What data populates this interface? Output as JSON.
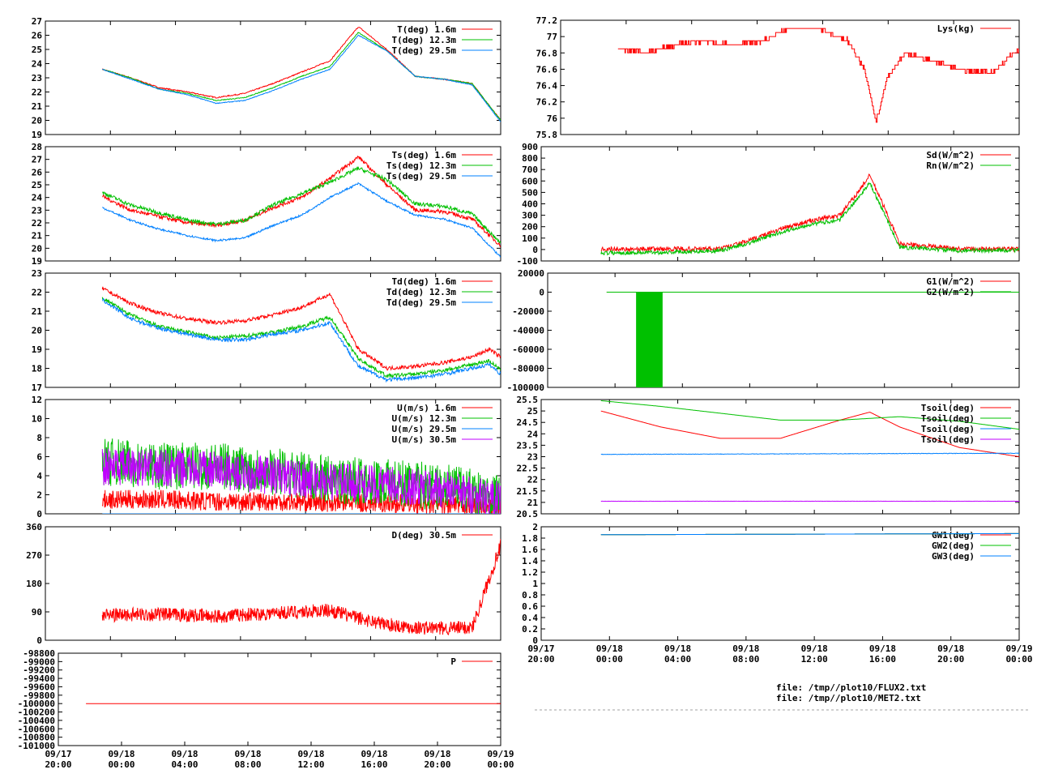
{
  "footer": {
    "file1": "file: /tmp//plot10/FLUX2.txt",
    "file2": "file: /tmp//plot10/MET2.txt"
  },
  "colors": {
    "red": "#ff0000",
    "green": "#00c000",
    "blue": "#0080ff",
    "purple": "#c000ff",
    "brown": "#a05a00"
  },
  "chart_data": [
    {
      "id": "T",
      "type": "line",
      "ylim": [
        19,
        27
      ],
      "yticks": [
        "19",
        "20",
        "21",
        "22",
        "23",
        "24",
        "25",
        "26",
        "27"
      ],
      "xlim": [
        -4,
        4
      ],
      "xticks": [],
      "series": [
        {
          "name": "T(deg)  1.6m",
          "color": "#ff0000",
          "noise": 0.08,
          "x": [
            -3,
            -2.5,
            -2,
            -1.5,
            -1,
            -0.5,
            0,
            0.5,
            1,
            1.5,
            2,
            2.5,
            3,
            3.5,
            4
          ],
          "y": [
            23.6,
            23.0,
            22.3,
            22.0,
            21.6,
            21.9,
            22.6,
            23.4,
            24.2,
            26.6,
            25.0,
            23.1,
            22.9,
            22.6,
            20.0
          ]
        },
        {
          "name": "T(deg) 12.3m",
          "color": "#00c000",
          "noise": 0.06,
          "x": [
            -3,
            -2.5,
            -2,
            -1.5,
            -1,
            -0.5,
            0,
            0.5,
            1,
            1.5,
            2,
            2.5,
            3,
            3.5,
            4
          ],
          "y": [
            23.6,
            23.0,
            22.2,
            21.9,
            21.4,
            21.6,
            22.3,
            23.1,
            23.8,
            26.2,
            24.9,
            23.1,
            22.9,
            22.6,
            20.0
          ]
        },
        {
          "name": "T(deg) 29.5m",
          "color": "#0080ff",
          "noise": 0.05,
          "x": [
            -3,
            -2.5,
            -2,
            -1.5,
            -1,
            -0.5,
            0,
            0.5,
            1,
            1.5,
            2,
            2.5,
            3,
            3.5,
            4
          ],
          "y": [
            23.6,
            22.9,
            22.2,
            21.8,
            21.2,
            21.4,
            22.1,
            22.9,
            23.6,
            26.0,
            24.9,
            23.1,
            22.9,
            22.5,
            19.9
          ]
        }
      ]
    },
    {
      "id": "Ts",
      "type": "line",
      "ylim": [
        19,
        28
      ],
      "yticks": [
        "19",
        "20",
        "21",
        "22",
        "23",
        "24",
        "25",
        "26",
        "27",
        "28"
      ],
      "xlim": [
        -4,
        4
      ],
      "xticks": [],
      "series": [
        {
          "name": "Ts(deg)  1.6m",
          "color": "#ff0000",
          "noise": 0.3,
          "x": [
            -3,
            -2.5,
            -2,
            -1.5,
            -1,
            -0.5,
            0,
            0.5,
            1,
            1.5,
            2,
            2.5,
            3,
            3.5,
            4
          ],
          "y": [
            24.1,
            23.0,
            22.5,
            22.0,
            21.8,
            22.2,
            23.2,
            24.0,
            25.5,
            27.2,
            25.0,
            23.0,
            22.9,
            22.3,
            20.2
          ]
        },
        {
          "name": "Ts(deg) 12.3m",
          "color": "#00c000",
          "noise": 0.3,
          "x": [
            -3,
            -2.5,
            -2,
            -1.5,
            -1,
            -0.5,
            0,
            0.5,
            1,
            1.5,
            2,
            2.5,
            3,
            3.5,
            4
          ],
          "y": [
            24.4,
            23.4,
            22.8,
            22.2,
            21.9,
            22.2,
            23.4,
            24.3,
            25.2,
            26.3,
            25.4,
            23.5,
            23.3,
            22.7,
            20.4
          ]
        },
        {
          "name": "Ts(deg) 29.5m",
          "color": "#0080ff",
          "noise": 0.15,
          "x": [
            -3,
            -2.5,
            -2,
            -1.5,
            -1,
            -0.5,
            0,
            0.5,
            1,
            1.5,
            2,
            2.5,
            3,
            3.5,
            4
          ],
          "y": [
            23.2,
            22.2,
            21.5,
            21.0,
            20.6,
            20.8,
            21.8,
            22.6,
            24.0,
            25.1,
            23.7,
            22.6,
            22.3,
            21.6,
            19.3
          ]
        }
      ]
    },
    {
      "id": "Td",
      "type": "line",
      "ylim": [
        17,
        23
      ],
      "yticks": [
        "17",
        "18",
        "19",
        "20",
        "21",
        "22",
        "23"
      ],
      "xlim": [
        -4,
        4
      ],
      "xticks": [],
      "series": [
        {
          "name": "Td(deg)  1.6m",
          "color": "#ff0000",
          "noise": 0.2,
          "x": [
            -3,
            -2.5,
            -2,
            -1.5,
            -1,
            -0.5,
            0,
            0.5,
            1,
            1.5,
            2,
            2.5,
            3,
            3.5,
            3.8,
            4
          ],
          "y": [
            22.2,
            21.4,
            20.9,
            20.6,
            20.4,
            20.5,
            20.8,
            21.2,
            21.9,
            19.0,
            18.0,
            18.1,
            18.3,
            18.6,
            19.0,
            18.6
          ]
        },
        {
          "name": "Td(deg) 12.3m",
          "color": "#00c000",
          "noise": 0.2,
          "x": [
            -3,
            -2.5,
            -2,
            -1.5,
            -1,
            -0.5,
            0,
            0.5,
            1,
            1.5,
            2,
            2.5,
            3,
            3.5,
            3.8,
            4
          ],
          "y": [
            21.7,
            20.8,
            20.2,
            19.9,
            19.6,
            19.7,
            19.9,
            20.2,
            20.7,
            18.5,
            17.6,
            17.7,
            17.9,
            18.2,
            18.4,
            17.9
          ]
        },
        {
          "name": "Td(deg) 29.5m",
          "color": "#0080ff",
          "noise": 0.2,
          "x": [
            -3,
            -2.5,
            -2,
            -1.5,
            -1,
            -0.5,
            0,
            0.5,
            1,
            1.5,
            2,
            2.5,
            3,
            3.5,
            3.8,
            4
          ],
          "y": [
            21.6,
            20.6,
            20.1,
            19.8,
            19.5,
            19.5,
            19.8,
            20.0,
            20.4,
            18.1,
            17.4,
            17.5,
            17.7,
            18.0,
            18.2,
            17.7
          ]
        }
      ]
    },
    {
      "id": "U",
      "type": "line",
      "ylim": [
        0,
        12
      ],
      "yticks": [
        "0",
        "2",
        "4",
        "6",
        "8",
        "10",
        "12"
      ],
      "xlim": [
        -4,
        4
      ],
      "xticks": [],
      "series": [
        {
          "name": "U(m/s)  1.6m",
          "color": "#ff0000",
          "noise": 1.0,
          "mode": "band",
          "x": [
            -3,
            -2,
            -1,
            0,
            1,
            2,
            3,
            4
          ],
          "y": [
            1.5,
            1.5,
            1.3,
            1.3,
            1.2,
            1.1,
            0.9,
            0.6
          ]
        },
        {
          "name": "U(m/s) 12.3m",
          "color": "#00c000",
          "noise": 2.5,
          "mode": "band",
          "x": [
            -3,
            -2,
            -1,
            0,
            1,
            2,
            3,
            4
          ],
          "y": [
            5.5,
            5.0,
            5.0,
            4.5,
            3.6,
            3.3,
            2.8,
            1.6
          ]
        },
        {
          "name": "U(m/s) 29.5m",
          "color": "#0080ff",
          "noise": 0.0,
          "mode": "band",
          "x": [
            -3,
            4
          ],
          "y": [
            0,
            0
          ]
        },
        {
          "name": "U(m/s) 30.5m",
          "color": "#c000ff",
          "noise": 2.0,
          "mode": "band",
          "x": [
            -3,
            -2,
            -1,
            0,
            1,
            2,
            3,
            4
          ],
          "y": [
            5.0,
            4.8,
            4.6,
            4.0,
            3.4,
            3.0,
            2.6,
            1.4
          ]
        }
      ]
    },
    {
      "id": "D",
      "type": "line",
      "ylim": [
        0,
        360
      ],
      "yticks": [
        "0",
        "90",
        "180",
        "270",
        "360"
      ],
      "xlim": [
        -4,
        4
      ],
      "xticks": [],
      "series": [
        {
          "name": "D(deg)  30.5m",
          "color": "#ff0000",
          "noise": 22,
          "mode": "band",
          "x": [
            -3,
            -2,
            -1,
            0,
            1,
            1.5,
            2,
            2.5,
            3,
            3.5,
            4
          ],
          "y": [
            80,
            82,
            76,
            86,
            95,
            70,
            50,
            40,
            38,
            40,
            300
          ]
        }
      ]
    },
    {
      "id": "P",
      "type": "line",
      "ylim": [
        -101000,
        -98800
      ],
      "yticks": [
        "-101000",
        "-100800",
        "-100600",
        "-100400",
        "-100200",
        "-100000",
        "-99800",
        "-99600",
        "-99400",
        "-99200",
        "-99000",
        "-98800"
      ],
      "xlim": [
        -4,
        4
      ],
      "xticks": [
        "09/17\n20:00",
        "09/18\n00:00",
        "09/18\n04:00",
        "09/18\n08:00",
        "09/18\n12:00",
        "09/18\n16:00",
        "09/18\n20:00",
        "09/19\n00:00"
      ],
      "series": [
        {
          "name": "P",
          "color": "#ff0000",
          "noise": 0,
          "x": [
            -3.5,
            4
          ],
          "y": [
            -100000,
            -100000
          ]
        }
      ]
    },
    {
      "id": "Lys",
      "type": "line",
      "ylim": [
        75.8,
        77.2
      ],
      "yticks": [
        "75.8",
        "76",
        "76.2",
        "76.4",
        "76.6",
        "76.8",
        "77",
        "77.2"
      ],
      "xlim": [
        -4,
        4
      ],
      "xticks": [],
      "series": [
        {
          "name": "Lys(kg)",
          "color": "#ff0000",
          "noise": 0.05,
          "mode": "step",
          "x": [
            -3,
            -2.5,
            -2,
            -1.5,
            -1,
            -0.5,
            0,
            0.5,
            1,
            1.3,
            1.5,
            1.7,
            2,
            2.5,
            3,
            3.5,
            4
          ],
          "y": [
            76.85,
            76.8,
            76.9,
            76.95,
            76.9,
            76.95,
            77.1,
            77.1,
            76.95,
            76.6,
            75.95,
            76.5,
            76.8,
            76.7,
            76.6,
            76.55,
            76.85
          ]
        }
      ]
    },
    {
      "id": "Rad",
      "type": "line",
      "ylim": [
        -100,
        900
      ],
      "yticks": [
        "-100",
        "0",
        "100",
        "200",
        "300",
        "400",
        "500",
        "600",
        "700",
        "800",
        "900"
      ],
      "xlim": [
        -4,
        4
      ],
      "xticks": [],
      "series": [
        {
          "name": "Sd(W/m^2)",
          "color": "#ff0000",
          "noise": 40,
          "x": [
            -3,
            -2,
            -1,
            -0.5,
            0,
            0.5,
            1,
            1.3,
            1.5,
            1.8,
            2,
            3,
            4
          ],
          "y": [
            5,
            5,
            5,
            80,
            180,
            250,
            300,
            500,
            650,
            300,
            50,
            5,
            5
          ]
        },
        {
          "name": "Rn(W/m^2)",
          "color": "#00c000",
          "noise": 35,
          "x": [
            -3,
            -2,
            -1,
            -0.5,
            0,
            0.5,
            1,
            1.3,
            1.5,
            1.8,
            2,
            3,
            4
          ],
          "y": [
            -30,
            -25,
            -10,
            60,
            150,
            220,
            260,
            450,
            580,
            250,
            20,
            -10,
            -5
          ]
        }
      ]
    },
    {
      "id": "G",
      "type": "line",
      "ylim": [
        -100000,
        20000
      ],
      "yticks": [
        "-100000",
        "-80000",
        "-60000",
        "-40000",
        "-20000",
        "0",
        "20000"
      ],
      "xlim": [
        -4,
        4
      ],
      "xticks": [],
      "series": [
        {
          "name": "G1(W/m^2)",
          "color": "#ff0000",
          "noise": 0,
          "x": [
            -3,
            4
          ],
          "y": [
            0,
            0
          ]
        },
        {
          "name": "G2(W/m^2)",
          "color": "#00c000",
          "noise": 0,
          "x": [
            -3,
            4
          ],
          "y": [
            0,
            0
          ]
        }
      ],
      "block": {
        "x0": -2.5,
        "x1": -2.05,
        "y0": -100000,
        "y1": 0,
        "color": "#00c000"
      }
    },
    {
      "id": "Tsoil",
      "type": "line",
      "ylim": [
        20.5,
        25.5
      ],
      "yticks": [
        "20.5",
        "21",
        "21.5",
        "22",
        "22.5",
        "23",
        "23.5",
        "24",
        "24.5",
        "25",
        "25.5"
      ],
      "xlim": [
        -4,
        4
      ],
      "xticks": [],
      "series": [
        {
          "name": "Tsoil(deg)",
          "color": "#ff0000",
          "noise": 0,
          "x": [
            -3,
            -2,
            -1,
            0,
            0.5,
            1,
            1.5,
            2,
            3,
            4
          ],
          "y": [
            25.0,
            24.3,
            23.8,
            23.8,
            24.2,
            24.6,
            24.95,
            24.3,
            23.4,
            23.0
          ]
        },
        {
          "name": "Tsoil(deg)",
          "color": "#00c000",
          "noise": 0,
          "x": [
            -3,
            -2,
            -1,
            0,
            1,
            2,
            3,
            4
          ],
          "y": [
            25.45,
            25.2,
            24.9,
            24.6,
            24.6,
            24.75,
            24.55,
            24.2
          ]
        },
        {
          "name": "Tsoil(deg)",
          "color": "#0080ff",
          "noise": 0.02,
          "x": [
            -3,
            4
          ],
          "y": [
            23.1,
            23.15
          ]
        },
        {
          "name": "Tsoil(deg)",
          "color": "#c000ff",
          "noise": 0.01,
          "x": [
            -3,
            4
          ],
          "y": [
            21.05,
            21.05
          ]
        }
      ]
    },
    {
      "id": "GW",
      "type": "line",
      "ylim": [
        0,
        2
      ],
      "yticks": [
        "0",
        "0.2",
        "0.4",
        "0.6",
        "0.8",
        "1",
        "1.2",
        "1.4",
        "1.6",
        "1.8",
        "2"
      ],
      "xlim": [
        -4,
        4
      ],
      "xticks": [
        "09/17\n20:00",
        "09/18\n00:00",
        "09/18\n04:00",
        "09/18\n08:00",
        "09/18\n12:00",
        "09/18\n16:00",
        "09/18\n20:00",
        "09/19\n00:00"
      ],
      "series": [
        {
          "name": "GW1(deg)",
          "color": "#ff0000",
          "noise": 0,
          "x": [
            -3,
            4
          ],
          "y": [
            1.86,
            1.88
          ]
        },
        {
          "name": "GW2(deg)",
          "color": "#00c000",
          "noise": 0,
          "x": [
            -3,
            4
          ],
          "y": [
            1.86,
            1.88
          ]
        },
        {
          "name": "GW3(deg)",
          "color": "#0080ff",
          "noise": 0,
          "x": [
            -3,
            4
          ],
          "y": [
            1.86,
            1.88
          ]
        }
      ]
    }
  ]
}
